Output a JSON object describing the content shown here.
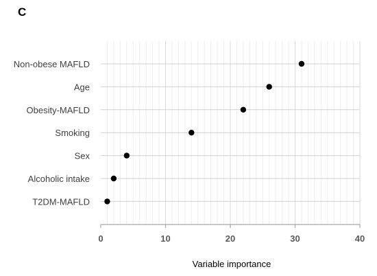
{
  "panel_label": "C",
  "chart_data": {
    "type": "scatter",
    "title": "",
    "xlabel": "Variable importance",
    "ylabel": "",
    "xlim": [
      0,
      40
    ],
    "x_ticks": [
      0,
      10,
      20,
      30,
      40
    ],
    "grid": true,
    "legend": "none",
    "categories": [
      "Non-obese MAFLD",
      "Age",
      "Obesity-MAFLD",
      "Smoking",
      "Sex",
      "Alcoholic intake",
      "T2DM-MAFLD"
    ],
    "values": [
      31,
      26,
      22,
      14,
      4,
      2,
      1
    ],
    "marker_color": "#000000"
  }
}
